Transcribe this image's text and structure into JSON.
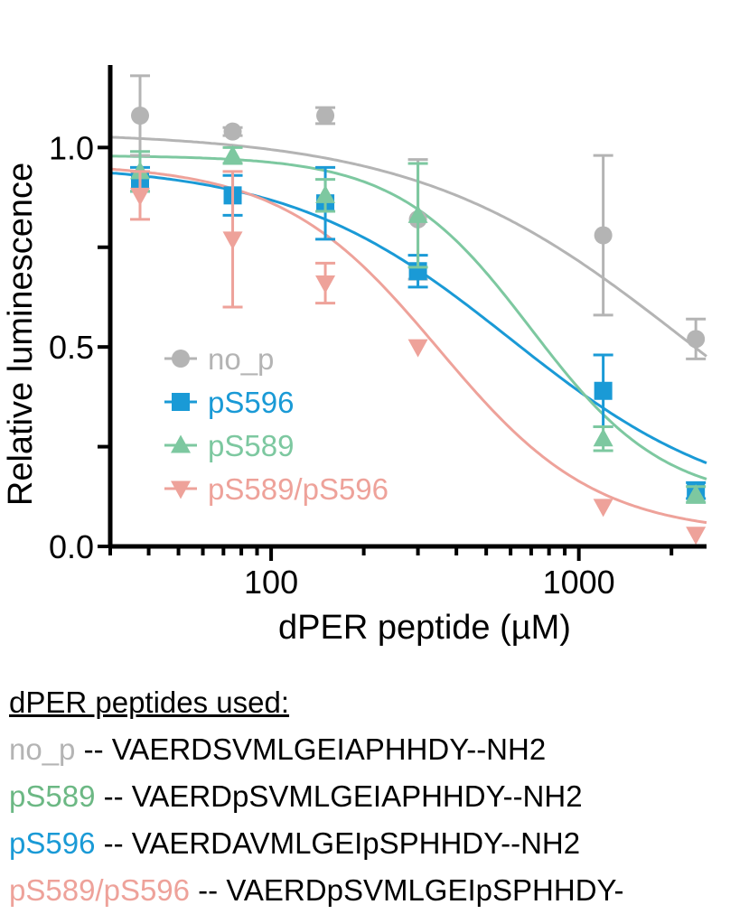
{
  "chart_data": {
    "type": "scatter",
    "xscale": "log",
    "xlabel": "dPER peptide (µM)",
    "ylabel": "Relative luminescence",
    "xlim": [
      30,
      2600
    ],
    "ylim": [
      0.0,
      1.2
    ],
    "xticks": [
      100,
      1000
    ],
    "xtick_labels": [
      "100",
      "1000"
    ],
    "yticks": [
      0.0,
      0.5,
      1.0
    ],
    "ytick_labels": [
      "0.0",
      "0.5",
      "1.0"
    ],
    "legend_position": "lower-left",
    "series": [
      {
        "name": "no_p",
        "color": "#b4b4b4",
        "marker": "circle",
        "x": [
          37.5,
          75,
          150,
          300,
          1200,
          2400
        ],
        "y": [
          1.08,
          1.04,
          1.08,
          0.82,
          0.78,
          0.52
        ],
        "err": [
          0.1,
          0.01,
          0.02,
          0.15,
          0.2,
          0.05
        ],
        "fit": {
          "top": 1.04,
          "bottom": 0.0,
          "ic50": 2200,
          "hill": 1.0
        }
      },
      {
        "name": "pS596",
        "color": "#1a9ad6",
        "marker": "square",
        "x": [
          37.5,
          75,
          150,
          300,
          1200,
          2400
        ],
        "y": [
          0.92,
          0.88,
          0.86,
          0.69,
          0.39,
          0.14
        ],
        "err": [
          0.03,
          0.05,
          0.09,
          0.04,
          0.09,
          0.02
        ],
        "fit": {
          "top": 0.96,
          "bottom": 0.08,
          "ic50": 600,
          "hill": 1.2
        }
      },
      {
        "name": "pS589",
        "color": "#7dc8a0",
        "marker": "triangle-up",
        "x": [
          37.5,
          75,
          150,
          300,
          1200,
          2400
        ],
        "y": [
          0.94,
          0.98,
          0.88,
          0.83,
          0.27,
          0.13
        ],
        "err": [
          0.05,
          0.02,
          0.04,
          0.13,
          0.03,
          0.02
        ],
        "fit": {
          "top": 0.98,
          "bottom": 0.11,
          "ic50": 700,
          "hill": 2.0
        }
      },
      {
        "name": "pS589/pS596",
        "color": "#eea29a",
        "marker": "triangle-down",
        "x": [
          37.5,
          75,
          150,
          300,
          1200,
          2400
        ],
        "y": [
          0.88,
          0.77,
          0.66,
          0.5,
          0.1,
          0.03
        ],
        "err": [
          0.06,
          0.17,
          0.05,
          0.0,
          0.0,
          0.0
        ],
        "fit": {
          "top": 0.96,
          "bottom": 0.03,
          "ic50": 350,
          "hill": 1.7
        }
      }
    ]
  },
  "peptides": {
    "heading": "dPER peptides used:",
    "rows": [
      {
        "name": "no_p",
        "sep": " -- ",
        "sequence": "VAERDSVMLGEIAPHHDY--NH2",
        "color": "#b4b4b4"
      },
      {
        "name": "pS589",
        "sep": " -- ",
        "sequence": "VAERDpSVMLGEIAPHHDY--NH2",
        "color": "#6cb884"
      },
      {
        "name": "pS596",
        "sep": " -- ",
        "sequence": "VAERDAVMLGEIpSPHHDY--NH2",
        "color": "#1a9ad6"
      },
      {
        "name": "pS589/pS596",
        "sep": " -- ",
        "sequence": "VAERDpSVMLGEIpSPHHDY-",
        "color": "#eea29a"
      }
    ]
  }
}
